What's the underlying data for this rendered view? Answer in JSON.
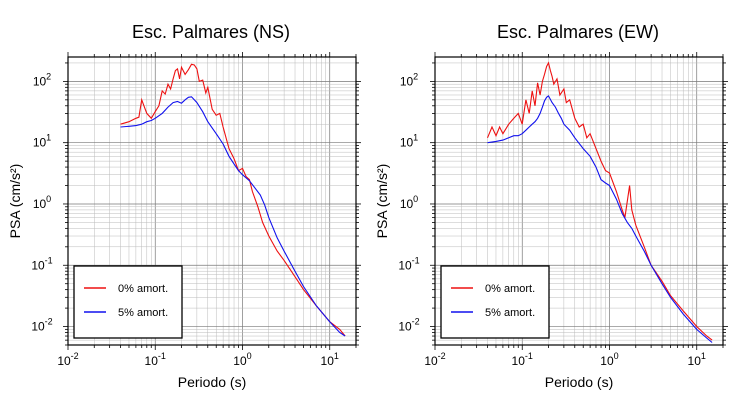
{
  "chart_data": [
    {
      "type": "line",
      "title": "Esc. Palmares (NS)",
      "xlabel": "Periodo (s)",
      "ylabel": "PSA (cm/s²)",
      "xscale": "log",
      "yscale": "log",
      "xlim": [
        0.01,
        20
      ],
      "ylim": [
        0.005,
        250
      ],
      "grid": true,
      "legend": "bottom-left",
      "series": [
        {
          "name": "0% amort.",
          "color": "#ee1111",
          "x": [
            0.04,
            0.05,
            0.06,
            0.065,
            0.07,
            0.08,
            0.09,
            0.1,
            0.11,
            0.12,
            0.13,
            0.14,
            0.15,
            0.16,
            0.17,
            0.18,
            0.19,
            0.2,
            0.22,
            0.24,
            0.26,
            0.28,
            0.3,
            0.32,
            0.35,
            0.38,
            0.4,
            0.45,
            0.5,
            0.55,
            0.6,
            0.7,
            0.8,
            0.9,
            1.0,
            1.1,
            1.2,
            1.3,
            1.5,
            1.7,
            2.0,
            2.5,
            3.0,
            4.0,
            5.0,
            7.0,
            10.0,
            13.0,
            15.0
          ],
          "y": [
            20,
            22,
            25,
            26,
            50,
            30,
            25,
            32,
            40,
            70,
            62,
            90,
            75,
            110,
            150,
            160,
            110,
            170,
            130,
            155,
            190,
            185,
            160,
            100,
            105,
            65,
            80,
            35,
            28,
            30,
            18,
            8,
            5.5,
            3.5,
            3.8,
            2.8,
            2.5,
            1.6,
            0.9,
            0.5,
            0.3,
            0.17,
            0.12,
            0.065,
            0.04,
            0.022,
            0.012,
            0.009,
            0.007
          ]
        },
        {
          "name": "5% amort.",
          "color": "#1111ee",
          "x": [
            0.04,
            0.05,
            0.06,
            0.07,
            0.08,
            0.09,
            0.1,
            0.12,
            0.14,
            0.16,
            0.18,
            0.2,
            0.22,
            0.24,
            0.26,
            0.28,
            0.3,
            0.35,
            0.4,
            0.5,
            0.6,
            0.7,
            0.8,
            0.9,
            1.0,
            1.2,
            1.4,
            1.6,
            1.8,
            2.0,
            2.5,
            3.0,
            4.0,
            5.0,
            7.0,
            10.0,
            13.0,
            15.0
          ],
          "y": [
            18,
            18.5,
            19,
            20,
            22,
            23,
            25,
            30,
            38,
            45,
            47,
            44,
            50,
            55,
            56,
            50,
            45,
            32,
            22,
            14,
            9.5,
            6,
            4.5,
            3.5,
            3.0,
            2.4,
            1.8,
            1.4,
            0.95,
            0.6,
            0.28,
            0.17,
            0.08,
            0.045,
            0.022,
            0.012,
            0.008,
            0.007
          ]
        }
      ]
    },
    {
      "type": "line",
      "title": "Esc. Palmares (EW)",
      "xlabel": "Periodo (s)",
      "ylabel": "PSA (cm/s²)",
      "xscale": "log",
      "yscale": "log",
      "xlim": [
        0.01,
        20
      ],
      "ylim": [
        0.005,
        250
      ],
      "grid": true,
      "legend": "bottom-left",
      "series": [
        {
          "name": "0% amort.",
          "color": "#ee1111",
          "x": [
            0.04,
            0.045,
            0.05,
            0.055,
            0.06,
            0.07,
            0.08,
            0.09,
            0.1,
            0.11,
            0.12,
            0.13,
            0.14,
            0.15,
            0.16,
            0.17,
            0.18,
            0.19,
            0.2,
            0.21,
            0.22,
            0.23,
            0.25,
            0.27,
            0.3,
            0.32,
            0.35,
            0.4,
            0.45,
            0.5,
            0.55,
            0.6,
            0.7,
            0.8,
            0.9,
            1.0,
            1.2,
            1.4,
            1.5,
            1.7,
            1.8,
            2.0,
            2.5,
            3.0,
            4.0,
            5.0,
            7.0,
            10.0,
            13.0,
            15.0
          ],
          "y": [
            12,
            18,
            13,
            18,
            14,
            20,
            25,
            30,
            20,
            50,
            30,
            70,
            40,
            95,
            60,
            100,
            130,
            175,
            200,
            150,
            120,
            90,
            110,
            60,
            75,
            45,
            50,
            25,
            18,
            20,
            12,
            14,
            8,
            5,
            3.5,
            3.2,
            1.6,
            0.8,
            0.6,
            2.0,
            0.8,
            0.45,
            0.2,
            0.1,
            0.055,
            0.032,
            0.018,
            0.01,
            0.007,
            0.006
          ]
        },
        {
          "name": "5% amort.",
          "color": "#1111ee",
          "x": [
            0.04,
            0.05,
            0.06,
            0.07,
            0.08,
            0.09,
            0.1,
            0.11,
            0.12,
            0.13,
            0.14,
            0.15,
            0.16,
            0.17,
            0.18,
            0.19,
            0.2,
            0.22,
            0.24,
            0.26,
            0.28,
            0.3,
            0.35,
            0.4,
            0.5,
            0.6,
            0.7,
            0.8,
            0.9,
            1.0,
            1.2,
            1.4,
            1.6,
            1.8,
            2.0,
            2.5,
            3.0,
            4.0,
            5.0,
            7.0,
            10.0,
            13.0,
            15.0
          ],
          "y": [
            10,
            10.5,
            11,
            12,
            13,
            13,
            14,
            16,
            18,
            20,
            22,
            25,
            30,
            38,
            48,
            55,
            58,
            45,
            38,
            30,
            25,
            20,
            16,
            12,
            8,
            6,
            4,
            2.5,
            2.2,
            2.0,
            1.2,
            0.7,
            0.5,
            0.4,
            0.3,
            0.17,
            0.1,
            0.05,
            0.03,
            0.016,
            0.009,
            0.0065,
            0.0055
          ]
        }
      ]
    }
  ]
}
